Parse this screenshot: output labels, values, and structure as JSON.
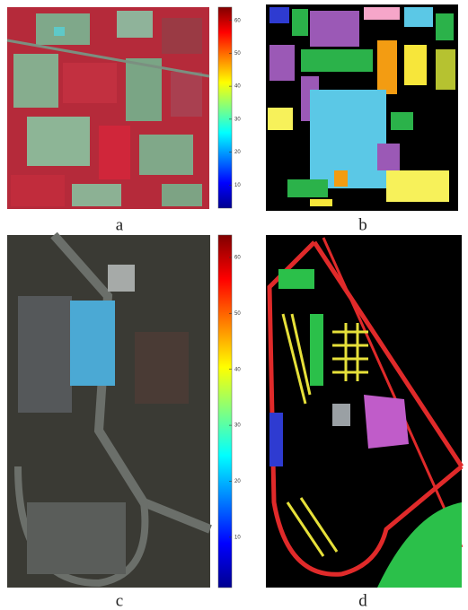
{
  "panels": [
    {
      "caption": "a",
      "colorbar": {
        "lim": [
          3,
          64
        ],
        "ticks": [
          10,
          20,
          30,
          40,
          50,
          60
        ]
      }
    },
    {
      "caption": "b"
    },
    {
      "caption": "c",
      "colorbar": {
        "lim": [
          1,
          64
        ],
        "ticks": [
          10,
          20,
          30,
          40,
          50,
          60
        ]
      }
    },
    {
      "caption": "d"
    }
  ]
}
